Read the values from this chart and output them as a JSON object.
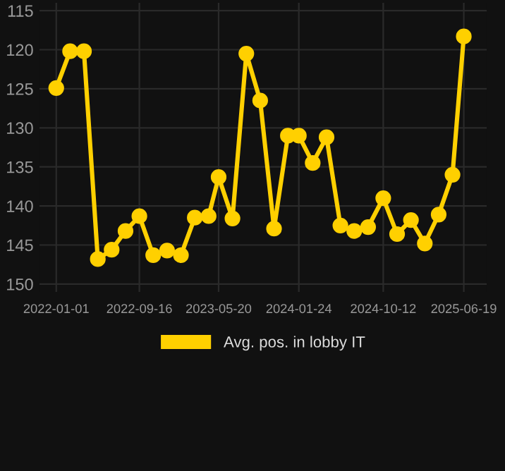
{
  "chart_data": {
    "type": "line",
    "x": [
      "2022-01-01",
      "2022-02-13",
      "2022-03-28",
      "2022-05-10",
      "2022-06-22",
      "2022-08-04",
      "2022-09-16",
      "2022-10-29",
      "2022-12-11",
      "2023-01-23",
      "2023-03-07",
      "2023-04-19",
      "2023-05-20",
      "2023-07-02",
      "2023-08-14",
      "2023-09-26",
      "2023-11-08",
      "2023-12-21",
      "2024-01-24",
      "2024-03-07",
      "2024-04-19",
      "2024-06-01",
      "2024-07-14",
      "2024-08-26",
      "2024-10-12",
      "2024-11-24",
      "2025-01-06",
      "2025-02-18",
      "2025-04-02",
      "2025-05-15",
      "2025-06-19"
    ],
    "series": [
      {
        "name": "Avg. pos. in lobby IT",
        "color": "#ffd000",
        "values": [
          124.9,
          120.2,
          120.2,
          146.8,
          145.6,
          143.2,
          141.3,
          146.3,
          145.7,
          146.3,
          141.5,
          141.3,
          136.3,
          141.6,
          120.5,
          126.5,
          142.9,
          131.0,
          131.0,
          134.5,
          131.2,
          142.5,
          143.2,
          142.7,
          139.0,
          143.6,
          141.8,
          144.8,
          141.1,
          136.0,
          118.3
        ]
      }
    ],
    "xlim": [
      "2021-11-10",
      "2025-08-29"
    ],
    "xticks": [
      {
        "value": "2022-01-01",
        "label": "2022-01-01"
      },
      {
        "value": "2022-09-16",
        "label": "2022-09-16"
      },
      {
        "value": "2023-05-20",
        "label": "2023-05-20"
      },
      {
        "value": "2024-01-24",
        "label": "2024-01-24"
      },
      {
        "value": "2024-10-12",
        "label": "2024-10-12"
      },
      {
        "value": "2025-06-19",
        "label": "2025-06-19"
      }
    ],
    "ylim": [
      151,
      114
    ],
    "yticks": [
      115,
      120,
      125,
      130,
      135,
      140,
      145,
      150
    ],
    "grid": true,
    "legend": "bottom",
    "marker": "circle",
    "line_style": "solid"
  }
}
